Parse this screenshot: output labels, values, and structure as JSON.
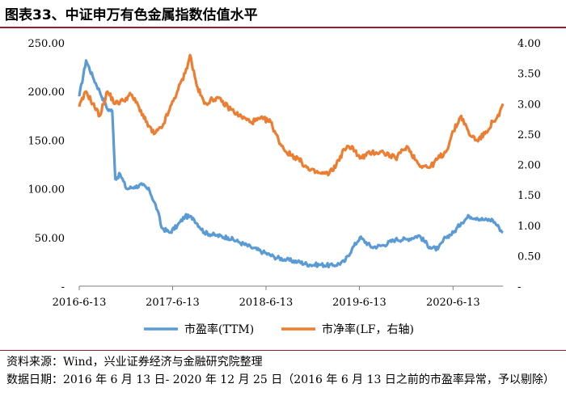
{
  "title": "图表33、中证申万有色金属指数估值水平",
  "source_note": "资料来源：Wind，兴业证券经济与金融研究院整理",
  "date_note": "数据日期：2016 年 6 月 13 日- 2020 年 12 月 25 日（2016 年 6 月 13 日之前的市盈率异常，予以剔除）",
  "colors": {
    "pe": "#5b9bd5",
    "pb": "#ed7d31",
    "rule": "#9b1c2c"
  },
  "chart_data": {
    "type": "line",
    "x_ticks": [
      "2016-6-13",
      "2017-6-13",
      "2018-6-13",
      "2019-6-13",
      "2020-6-13"
    ],
    "y_left": {
      "ticks": [
        "-",
        "50.00",
        "100.00",
        "150.00",
        "200.00",
        "250.00"
      ],
      "ylim": [
        0,
        250
      ]
    },
    "y_right": {
      "ticks": [
        "-",
        "0.50",
        "1.00",
        "1.50",
        "2.00",
        "2.50",
        "3.00",
        "3.50",
        "4.00"
      ],
      "ylim": [
        0,
        4
      ]
    },
    "legend_position": "bottom",
    "series": [
      {
        "name": "市盈率(TTM)",
        "axis": "left",
        "x": [
          "2016-06-13",
          "2016-07-10",
          "2016-08-05",
          "2016-09-01",
          "2016-10-01",
          "2016-10-20",
          "2016-11-01",
          "2016-11-20",
          "2016-12-15",
          "2017-01-15",
          "2017-02-15",
          "2017-03-15",
          "2017-04-15",
          "2017-05-01",
          "2017-06-01",
          "2017-07-01",
          "2017-08-01",
          "2017-09-01",
          "2017-10-15",
          "2017-12-01",
          "2018-01-15",
          "2018-03-01",
          "2018-04-15",
          "2018-06-01",
          "2018-07-15",
          "2018-09-01",
          "2018-10-15",
          "2018-12-01",
          "2019-01-15",
          "2019-03-01",
          "2019-04-15",
          "2019-05-15",
          "2019-06-15",
          "2019-08-01",
          "2019-09-15",
          "2019-11-01",
          "2019-12-15",
          "2020-02-01",
          "2020-03-15",
          "2020-04-15",
          "2020-05-15",
          "2020-06-15",
          "2020-07-15",
          "2020-08-15",
          "2020-09-15",
          "2020-10-15",
          "2020-11-15",
          "2020-12-10",
          "2020-12-25"
        ],
        "y": [
          195,
          232,
          215,
          200,
          182,
          180,
          110,
          115,
          100,
          102,
          104,
          98,
          78,
          60,
          55,
          62,
          72,
          70,
          55,
          52,
          50,
          45,
          40,
          35,
          30,
          27,
          25,
          22,
          22,
          21,
          25,
          38,
          50,
          40,
          42,
          48,
          48,
          52,
          40,
          38,
          50,
          55,
          65,
          72,
          70,
          68,
          68,
          60,
          55
        ]
      },
      {
        "name": "市净率(LF，右轴)",
        "axis": "right",
        "x": [
          "2016-06-13",
          "2016-07-10",
          "2016-08-05",
          "2016-09-01",
          "2016-10-01",
          "2016-11-01",
          "2016-12-01",
          "2017-01-01",
          "2017-02-01",
          "2017-03-01",
          "2017-04-01",
          "2017-05-01",
          "2017-06-01",
          "2017-07-01",
          "2017-08-01",
          "2017-08-20",
          "2017-09-15",
          "2017-10-15",
          "2017-12-01",
          "2018-01-15",
          "2018-03-01",
          "2018-04-15",
          "2018-06-01",
          "2018-07-01",
          "2018-08-01",
          "2018-09-01",
          "2018-10-15",
          "2018-12-01",
          "2019-01-15",
          "2019-02-15",
          "2019-03-15",
          "2019-04-15",
          "2019-05-15",
          "2019-06-15",
          "2019-08-01",
          "2019-09-15",
          "2019-11-01",
          "2019-12-15",
          "2020-02-01",
          "2020-03-15",
          "2020-04-15",
          "2020-05-15",
          "2020-06-15",
          "2020-07-15",
          "2020-08-15",
          "2020-09-15",
          "2020-10-15",
          "2020-11-15",
          "2020-12-10",
          "2020-12-25"
        ],
        "y": [
          2.95,
          3.2,
          3.0,
          2.8,
          3.2,
          3.0,
          3.05,
          3.15,
          2.95,
          2.7,
          2.5,
          2.6,
          2.9,
          3.2,
          3.5,
          3.8,
          3.3,
          3.0,
          3.1,
          2.95,
          2.8,
          2.7,
          2.75,
          2.7,
          2.4,
          2.2,
          2.1,
          1.9,
          1.85,
          1.85,
          2.0,
          2.25,
          2.3,
          2.1,
          2.2,
          2.2,
          2.1,
          2.3,
          2.0,
          1.95,
          2.1,
          2.2,
          2.55,
          2.8,
          2.5,
          2.4,
          2.5,
          2.7,
          2.8,
          3.0
        ]
      }
    ]
  }
}
